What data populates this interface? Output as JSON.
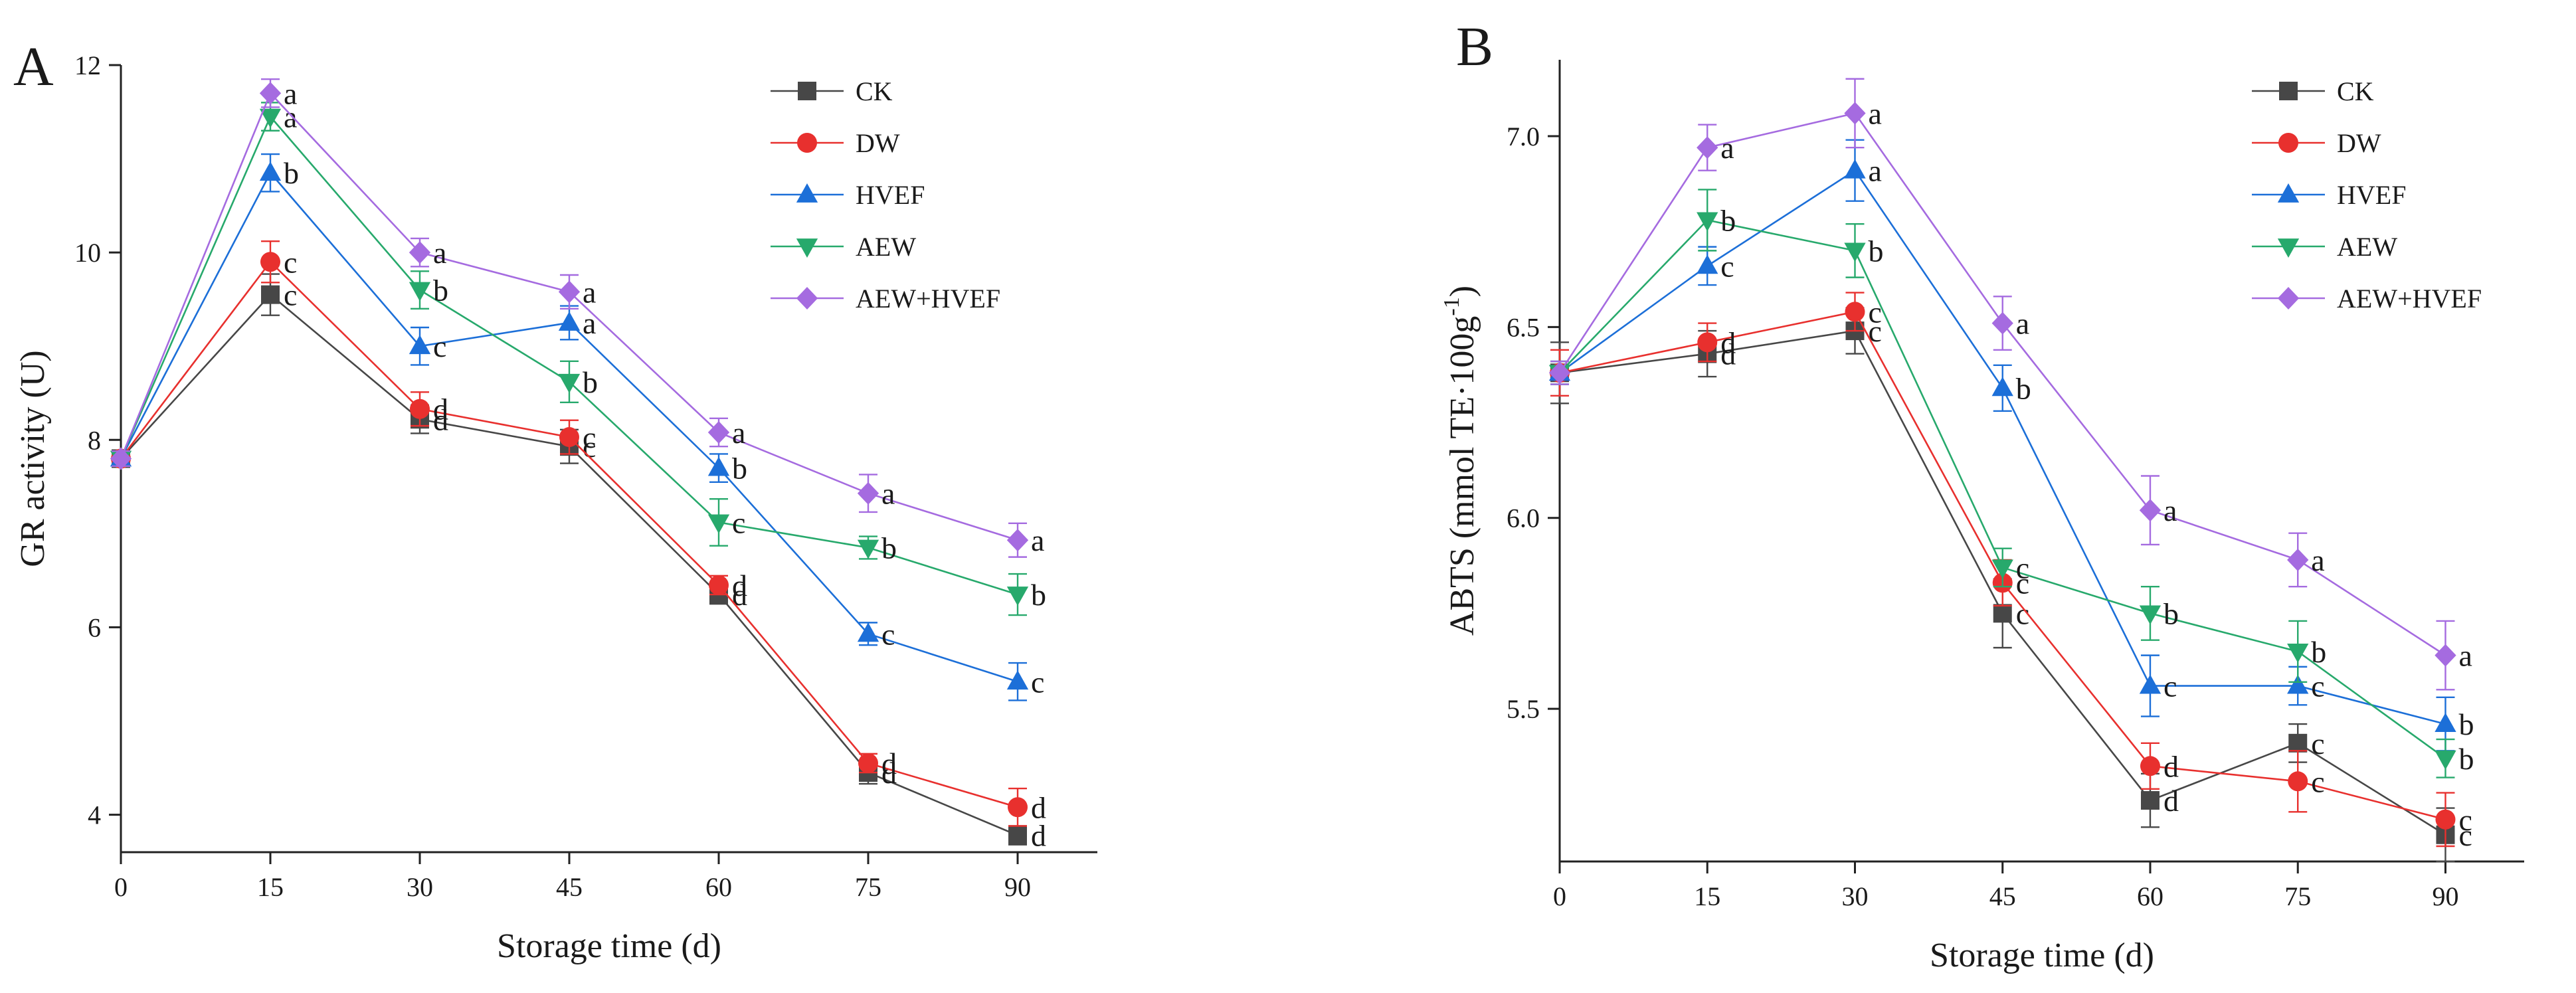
{
  "colors": {
    "CK": "#474747",
    "DW": "#e8302e",
    "HVEF": "#1c6fd8",
    "AEW": "#27a96c",
    "AEW+HVEF": "#a56be0"
  },
  "chart_data": [
    {
      "id": "A",
      "type": "line",
      "panel_label": "A",
      "xlabel": "Storage time (d)",
      "ylabel": "GR activity (U)",
      "x": [
        0,
        15,
        30,
        45,
        60,
        75,
        90
      ],
      "xlim": [
        0,
        98
      ],
      "ylim": [
        3.6,
        12
      ],
      "xticks": [
        0,
        15,
        30,
        45,
        60,
        75,
        90
      ],
      "yticks": [
        4,
        6,
        8,
        10,
        12
      ],
      "legend_position": "top-right",
      "series": [
        {
          "name": "CK",
          "marker": "square",
          "values": [
            7.8,
            9.55,
            8.22,
            7.93,
            6.35,
            4.45,
            3.78
          ],
          "errors": [
            0.08,
            0.22,
            0.15,
            0.18,
            0.1,
            0.12,
            0.1
          ],
          "letters": [
            "",
            "c",
            "d",
            "c",
            "d",
            "d",
            "d"
          ]
        },
        {
          "name": "DW",
          "marker": "circle",
          "values": [
            7.8,
            9.9,
            8.33,
            8.03,
            6.45,
            4.55,
            4.08
          ],
          "errors": [
            0.08,
            0.22,
            0.18,
            0.18,
            0.1,
            0.1,
            0.2
          ],
          "letters": [
            "",
            "c",
            "d",
            "c",
            "d",
            "d",
            "d"
          ]
        },
        {
          "name": "HVEF",
          "marker": "triangle-up",
          "values": [
            7.8,
            10.85,
            9.0,
            9.25,
            7.7,
            5.93,
            5.42
          ],
          "errors": [
            0.08,
            0.2,
            0.2,
            0.18,
            0.15,
            0.12,
            0.2
          ],
          "letters": [
            "",
            "b",
            "c",
            "a",
            "b",
            "c",
            "c"
          ]
        },
        {
          "name": "AEW",
          "marker": "triangle-down",
          "values": [
            7.8,
            11.45,
            9.6,
            8.62,
            7.12,
            6.85,
            6.35
          ],
          "errors": [
            0.08,
            0.15,
            0.2,
            0.22,
            0.25,
            0.12,
            0.22
          ],
          "letters": [
            "",
            "a",
            "b",
            "b",
            "c",
            "b",
            "b"
          ]
        },
        {
          "name": "AEW+HVEF",
          "marker": "diamond",
          "values": [
            7.8,
            11.7,
            10.0,
            9.58,
            8.08,
            7.43,
            6.93
          ],
          "errors": [
            0.08,
            0.15,
            0.15,
            0.18,
            0.15,
            0.2,
            0.18
          ],
          "letters": [
            "",
            "a",
            "a",
            "a",
            "a",
            "a",
            "a"
          ]
        }
      ]
    },
    {
      "id": "B",
      "type": "line",
      "panel_label": "B",
      "xlabel": "Storage time (d)",
      "ylabel_main": "ABTS (mmol TE·100g",
      "ylabel_sup": "-1",
      "ylabel_close": ")",
      "x": [
        0,
        15,
        30,
        45,
        60,
        75,
        90
      ],
      "xlim": [
        0,
        98
      ],
      "ylim": [
        5.1,
        7.2
      ],
      "xticks": [
        0,
        15,
        30,
        45,
        60,
        75,
        90
      ],
      "yticks": [
        5.5,
        6.0,
        6.5,
        7.0
      ],
      "ytick_labels": [
        "5.5",
        "6.0",
        "6.5",
        "7.0"
      ],
      "legend_position": "top-right",
      "series": [
        {
          "name": "CK",
          "marker": "square",
          "values": [
            6.38,
            6.43,
            6.49,
            5.75,
            5.26,
            5.41,
            5.17
          ],
          "errors": [
            0.08,
            0.06,
            0.06,
            0.09,
            0.07,
            0.05,
            0.07
          ],
          "letters": [
            "",
            "d",
            "c",
            "c",
            "d",
            "c",
            "c"
          ]
        },
        {
          "name": "DW",
          "marker": "circle",
          "values": [
            6.38,
            6.46,
            6.54,
            5.83,
            5.35,
            5.31,
            5.21
          ],
          "errors": [
            0.06,
            0.05,
            0.05,
            0.06,
            0.06,
            0.08,
            0.07
          ],
          "letters": [
            "",
            "d",
            "c",
            "c",
            "d",
            "c",
            "c"
          ]
        },
        {
          "name": "HVEF",
          "marker": "triangle-up",
          "values": [
            6.38,
            6.66,
            6.91,
            6.34,
            5.56,
            5.56,
            5.46
          ],
          "errors": [
            0.03,
            0.05,
            0.08,
            0.06,
            0.08,
            0.05,
            0.07
          ],
          "letters": [
            "",
            "c",
            "a",
            "b",
            "c",
            "c",
            "b"
          ]
        },
        {
          "name": "AEW",
          "marker": "triangle-down",
          "values": [
            6.38,
            6.78,
            6.7,
            5.87,
            5.75,
            5.65,
            5.37
          ],
          "errors": [
            0.03,
            0.08,
            0.07,
            0.05,
            0.07,
            0.08,
            0.05
          ],
          "letters": [
            "",
            "b",
            "b",
            "c",
            "b",
            "b",
            "b"
          ]
        },
        {
          "name": "AEW+HVEF",
          "marker": "diamond",
          "values": [
            6.38,
            6.97,
            7.06,
            6.51,
            6.02,
            5.89,
            5.64
          ],
          "errors": [
            0.03,
            0.06,
            0.09,
            0.07,
            0.09,
            0.07,
            0.09
          ],
          "letters": [
            "",
            "a",
            "a",
            "a",
            "a",
            "a",
            "a"
          ]
        }
      ]
    }
  ]
}
